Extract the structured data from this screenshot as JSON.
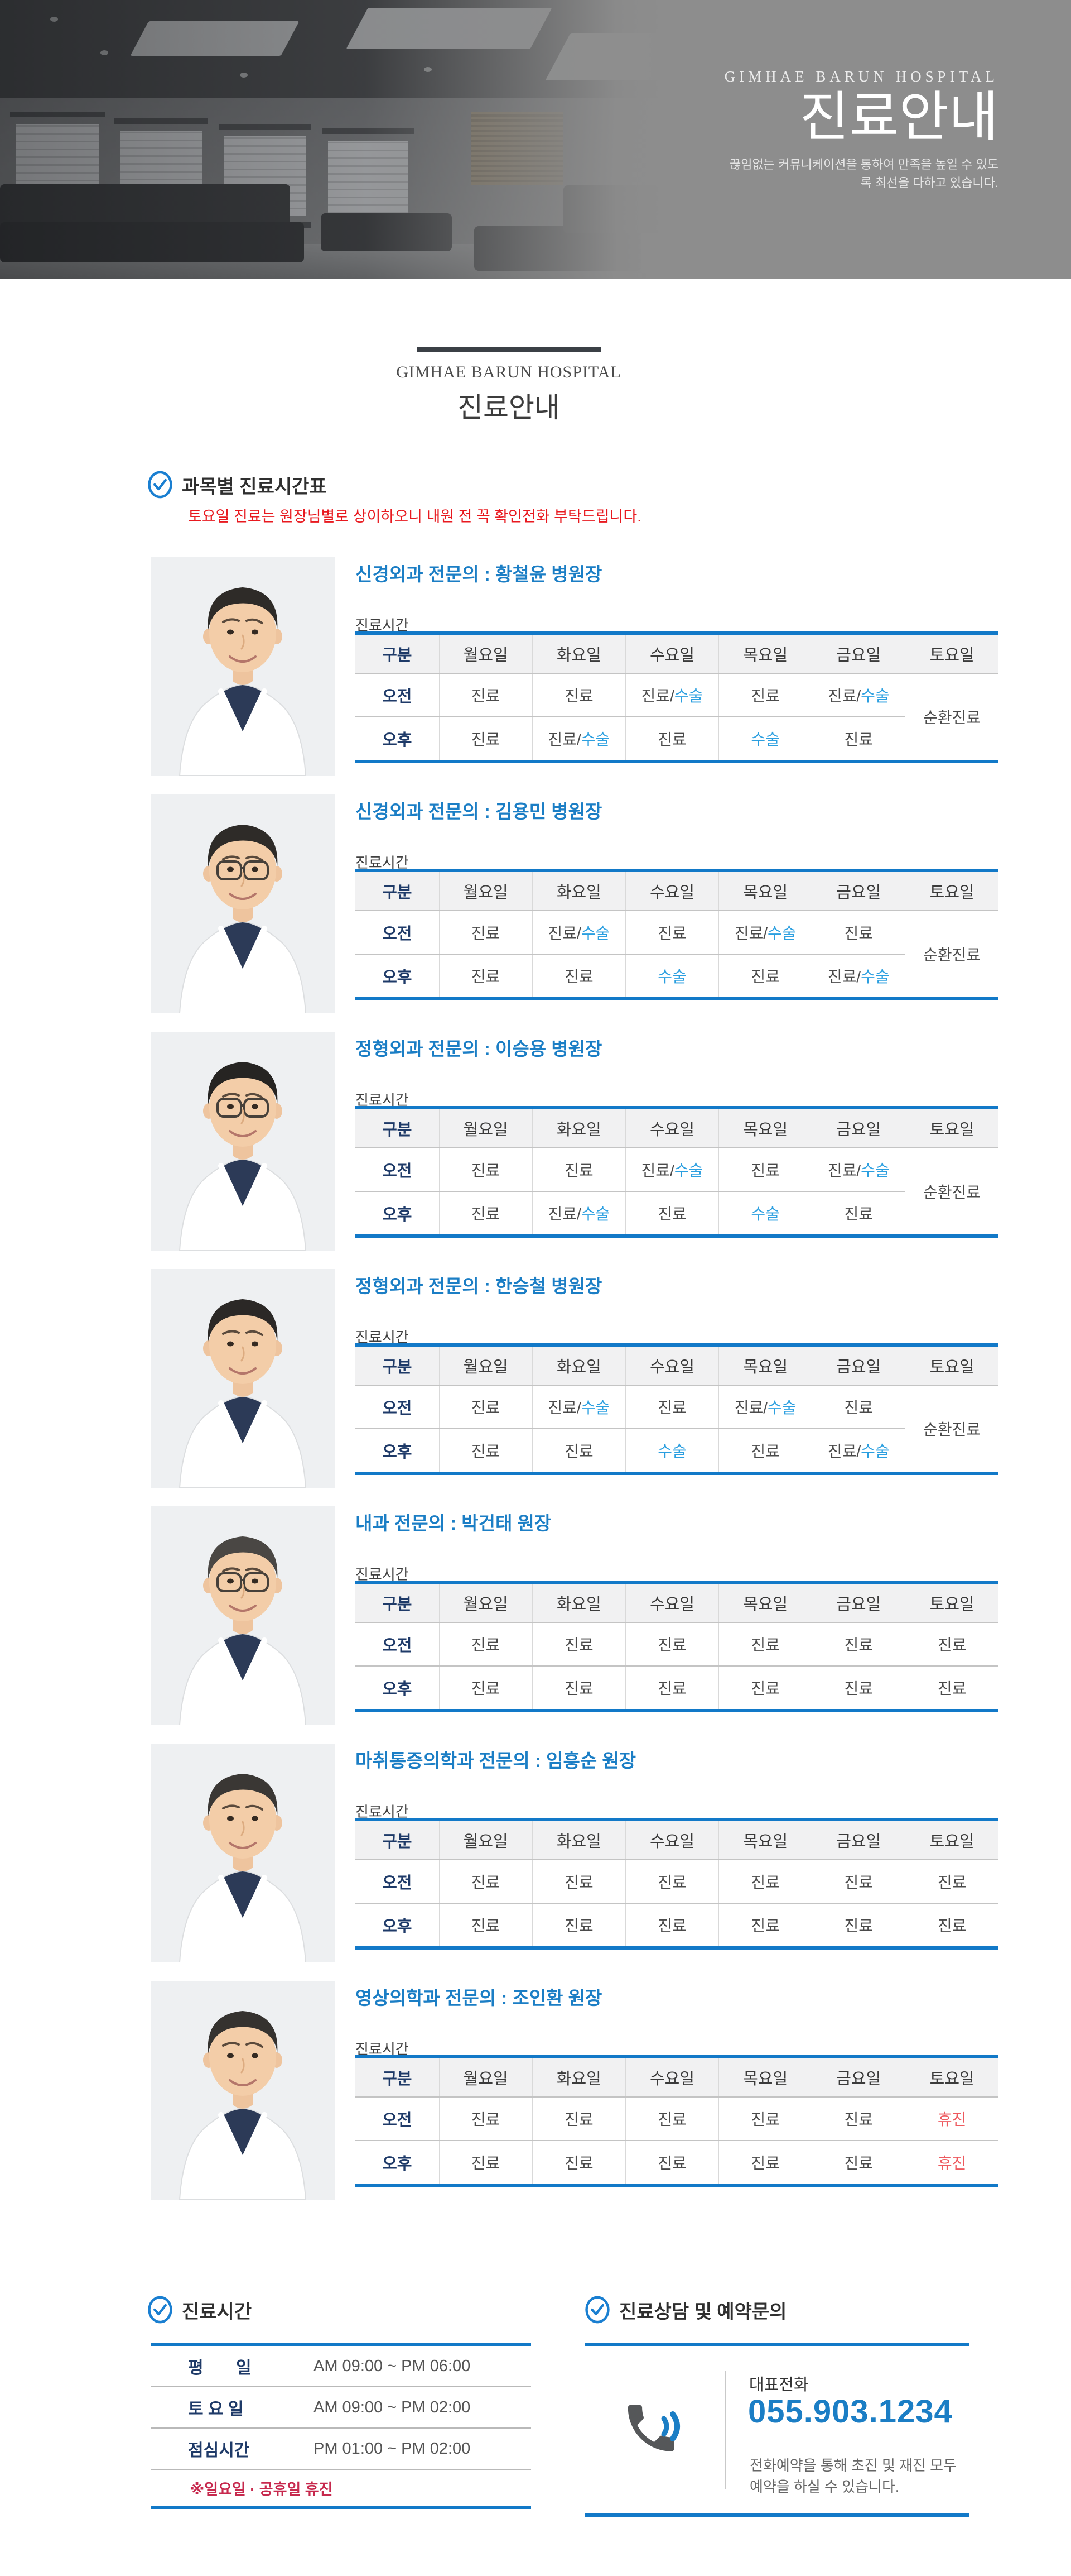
{
  "colors": {
    "accent_blue": "#1279c8",
    "link_blue": "#1b7ec5",
    "surgery_blue": "#2b9fe0",
    "closed_red": "#ee5a5f",
    "note_red": "#e8191f",
    "footnote_red": "#c7294e",
    "navy": "#1e3a68"
  },
  "hero": {
    "title_en": "GIMHAE BARUN HOSPITAL",
    "title_ko": "진료안내",
    "subtitle": "끊임없는 커뮤니케이션을 통하여 만족을 높일 수 있도록 최선을 다하고 있습니다."
  },
  "heading": {
    "title_en": "GIMHAE BARUN HOSPITAL",
    "title_ko": "진료안내"
  },
  "section": {
    "title": "과목별 진료시간표",
    "note": "토요일 진료는 원장님별로 상이하오니 내원 전 꼭 확인전화 부탁드립니다."
  },
  "schedule_label": "진료시간",
  "table_columns": [
    "구분",
    "월요일",
    "화요일",
    "수요일",
    "목요일",
    "금요일",
    "토요일"
  ],
  "doctors": [
    {
      "name": "신경외과 전문의 : 황철윤 병원장",
      "avatar": {
        "glasses": false,
        "hair": "#2e2b28"
      },
      "rows": [
        {
          "label": "오전",
          "cells": [
            "진료",
            "진료",
            "진료/수술",
            "진료",
            "진료/수술"
          ],
          "saturday": {
            "text": "순환진료",
            "rowspan": 2
          }
        },
        {
          "label": "오후",
          "cells": [
            "진료",
            "진료/수술",
            "진료",
            "수술",
            "진료"
          ],
          "saturday": null
        }
      ]
    },
    {
      "name": "신경외과 전문의 : 김용민 병원장",
      "avatar": {
        "glasses": true,
        "hair": "#2e2b28"
      },
      "rows": [
        {
          "label": "오전",
          "cells": [
            "진료",
            "진료/수술",
            "진료",
            "진료/수술",
            "진료"
          ],
          "saturday": {
            "text": "순환진료",
            "rowspan": 2
          }
        },
        {
          "label": "오후",
          "cells": [
            "진료",
            "진료",
            "수술",
            "진료",
            "진료/수술"
          ],
          "saturday": null
        }
      ]
    },
    {
      "name": "정형외과 전문의 : 이승용 병원장",
      "avatar": {
        "glasses": true,
        "hair": "#262422"
      },
      "rows": [
        {
          "label": "오전",
          "cells": [
            "진료",
            "진료",
            "진료/수술",
            "진료",
            "진료/수술"
          ],
          "saturday": {
            "text": "순환진료",
            "rowspan": 2
          }
        },
        {
          "label": "오후",
          "cells": [
            "진료",
            "진료/수술",
            "진료",
            "수술",
            "진료"
          ],
          "saturday": null
        }
      ]
    },
    {
      "name": "정형외과 전문의 : 한승철 병원장",
      "avatar": {
        "glasses": false,
        "hair": "#2b2826"
      },
      "rows": [
        {
          "label": "오전",
          "cells": [
            "진료",
            "진료/수술",
            "진료",
            "진료/수술",
            "진료"
          ],
          "saturday": {
            "text": "순환진료",
            "rowspan": 2
          }
        },
        {
          "label": "오후",
          "cells": [
            "진료",
            "진료",
            "수술",
            "진료",
            "진료/수술"
          ],
          "saturday": null
        }
      ]
    },
    {
      "name": "내과 전문의 : 박건태 원장",
      "avatar": {
        "glasses": true,
        "hair": "#4a4744"
      },
      "rows": [
        {
          "label": "오전",
          "cells": [
            "진료",
            "진료",
            "진료",
            "진료",
            "진료"
          ],
          "saturday": {
            "text": "진료"
          }
        },
        {
          "label": "오후",
          "cells": [
            "진료",
            "진료",
            "진료",
            "진료",
            "진료"
          ],
          "saturday": {
            "text": "진료"
          }
        }
      ]
    },
    {
      "name": "마취통증의학과 전문의 : 임흥순 원장",
      "avatar": {
        "glasses": false,
        "hair": "#3a3734"
      },
      "rows": [
        {
          "label": "오전",
          "cells": [
            "진료",
            "진료",
            "진료",
            "진료",
            "진료"
          ],
          "saturday": {
            "text": "진료"
          }
        },
        {
          "label": "오후",
          "cells": [
            "진료",
            "진료",
            "진료",
            "진료",
            "진료"
          ],
          "saturday": {
            "text": "진료"
          }
        }
      ]
    },
    {
      "name": "영상의학과 전문의 : 조인환 원장",
      "avatar": {
        "glasses": false,
        "hair": "#35322f"
      },
      "rows": [
        {
          "label": "오전",
          "cells": [
            "진료",
            "진료",
            "진료",
            "진료",
            "진료"
          ],
          "saturday": {
            "text": "휴진"
          }
        },
        {
          "label": "오후",
          "cells": [
            "진료",
            "진료",
            "진료",
            "진료",
            "진료"
          ],
          "saturday": {
            "text": "휴진"
          }
        }
      ]
    }
  ],
  "hours": {
    "title": "진료시간",
    "rows": [
      {
        "label": "평       일",
        "value": "AM 09:00 ~ PM 06:00"
      },
      {
        "label": "토 요 일",
        "value": "AM 09:00 ~ PM 02:00"
      },
      {
        "label": "점심시간",
        "value": "PM 01:00 ~ PM 02:00"
      }
    ],
    "note": "※일요일 · 공휴일 휴진"
  },
  "contact": {
    "title": "진료상담 및 예약문의",
    "phone_label": "대표전화",
    "phone_number": "055.903.1234",
    "desc": "전화예약을 통해 초진 및 재진 모두 예약을 하실 수 있습니다."
  }
}
